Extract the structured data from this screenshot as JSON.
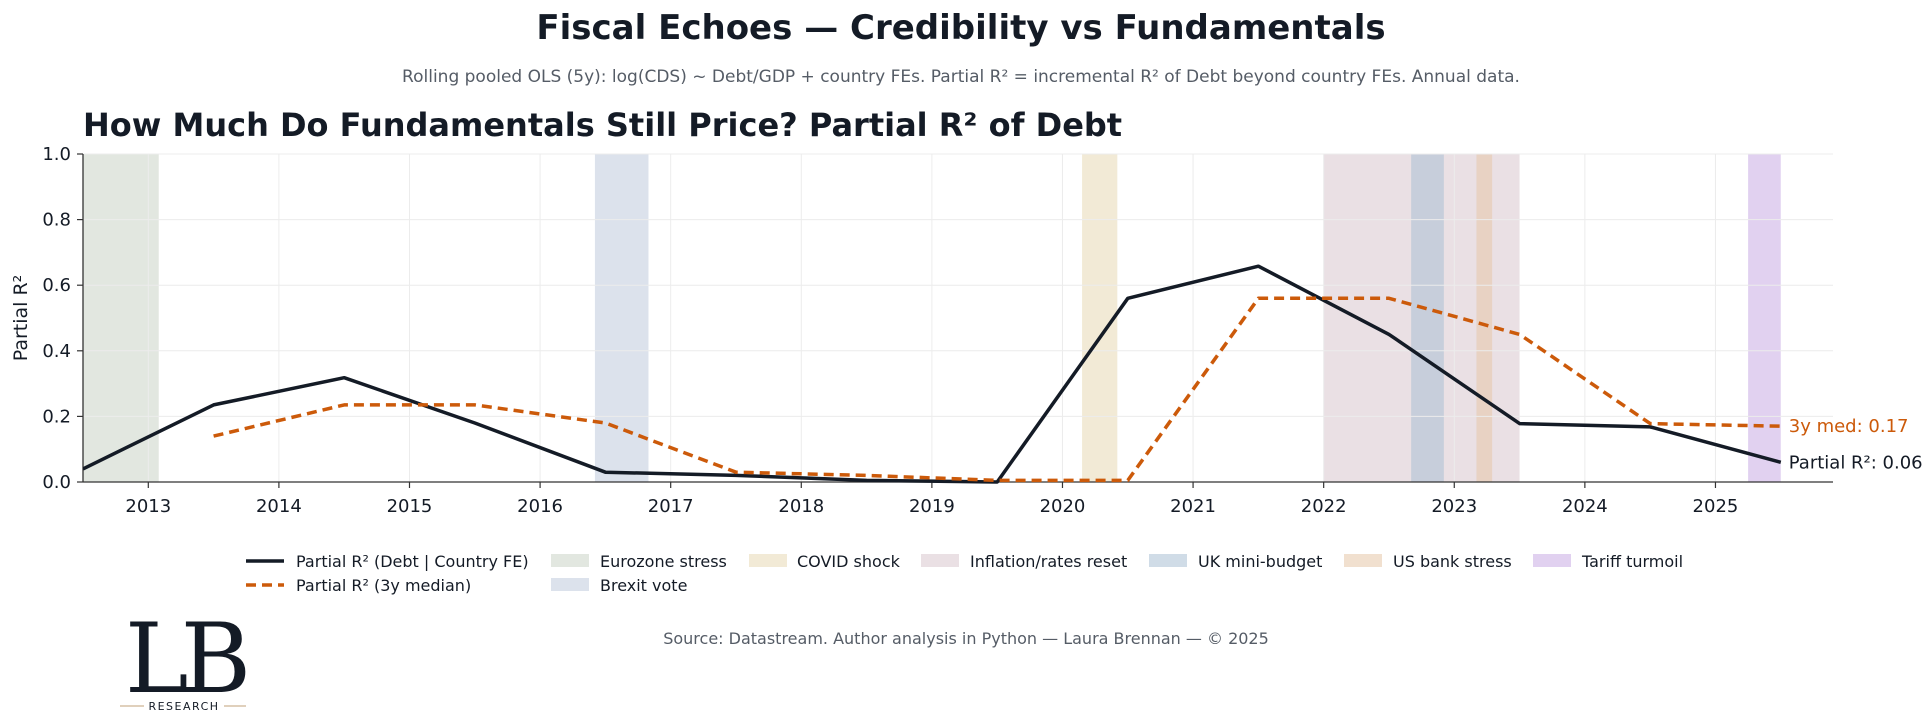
{
  "figure": {
    "suptitle": "Fiscal Echoes — Credibility vs Fundamentals",
    "subtitle": "Rolling pooled OLS (5y):  log(CDS) ~ Debt/GDP + country FEs.  Partial R² = incremental R² of Debt beyond country FEs.  Annual data.",
    "source": "Source: Datastream. Author analysis in Python — Laura Brennan — © 2025",
    "logo": {
      "letters": "LB",
      "tagline": "RESEARCH"
    }
  },
  "colors": {
    "main_line": "#141b26",
    "median_line": "#cc5a0a",
    "text_dark": "#141b26",
    "text_muted": "#555c66",
    "grid": "#ececec",
    "axis": "#333333"
  },
  "chart_data": {
    "type": "line",
    "title": "How Much Do Fundamentals Still Price?  Partial R² of Debt",
    "xlabel": "",
    "ylabel": "Partial R²",
    "xlim": [
      2012.5,
      2025.9
    ],
    "ylim": [
      0.0,
      1.0
    ],
    "grid": true,
    "x_ticks": [
      2013,
      2014,
      2015,
      2016,
      2017,
      2018,
      2019,
      2020,
      2021,
      2022,
      2023,
      2024,
      2025
    ],
    "x_tick_labels": [
      "2013",
      "2014",
      "2015",
      "2016",
      "2017",
      "2018",
      "2019",
      "2020",
      "2021",
      "2022",
      "2023",
      "2024",
      "2025"
    ],
    "y_ticks": [
      0.0,
      0.2,
      0.4,
      0.6,
      0.8,
      1.0
    ],
    "y_tick_labels": [
      "0.0",
      "0.2",
      "0.4",
      "0.6",
      "0.8",
      "1.0"
    ],
    "series": [
      {
        "name": "Partial R² (Debt | Country FE)",
        "style": "solid",
        "color": "#141b26",
        "x": [
          2012.5,
          2013.5,
          2014.5,
          2015.5,
          2016.5,
          2017.5,
          2018.5,
          2019.5,
          2020.5,
          2021.5,
          2022.5,
          2023.5,
          2024.5,
          2025.5
        ],
        "values": [
          0.04,
          0.235,
          0.318,
          0.18,
          0.03,
          0.02,
          0.005,
          0.0,
          0.56,
          0.658,
          0.45,
          0.178,
          0.168,
          0.06
        ]
      },
      {
        "name": "Partial R² (3y median)",
        "style": "dashed",
        "color": "#cc5a0a",
        "x": [
          2013.5,
          2014.5,
          2015.5,
          2016.5,
          2017.5,
          2018.5,
          2019.5,
          2020.5,
          2021.5,
          2022.5,
          2023.5,
          2024.5,
          2025.5
        ],
        "values": [
          0.14,
          0.235,
          0.235,
          0.18,
          0.03,
          0.02,
          0.005,
          0.005,
          0.56,
          0.56,
          0.45,
          0.178,
          0.17
        ]
      }
    ],
    "shaded_periods": [
      {
        "name": "Eurozone stress",
        "start": 2012.5,
        "end": 2013.08,
        "color": "#c6cfc1",
        "opacity": 0.5
      },
      {
        "name": "Brexit vote",
        "start": 2016.42,
        "end": 2016.83,
        "color": "#b9c6d9",
        "opacity": 0.5
      },
      {
        "name": "COVID shock",
        "start": 2020.15,
        "end": 2020.42,
        "color": "#e6d6ad",
        "opacity": 0.5
      },
      {
        "name": "Inflation/rates reset",
        "start": 2022.0,
        "end": 2023.5,
        "color": "#d5c1ca",
        "opacity": 0.5
      },
      {
        "name": "UK mini-budget",
        "start": 2022.67,
        "end": 2022.92,
        "color": "#a9bfd4",
        "opacity": 0.55
      },
      {
        "name": "US bank stress",
        "start": 2023.17,
        "end": 2023.29,
        "color": "#e6c7a7",
        "opacity": 0.55
      },
      {
        "name": "Tariff turmoil",
        "start": 2025.25,
        "end": 2025.5,
        "color": "#c9abe3",
        "opacity": 0.55
      }
    ],
    "annotations": [
      {
        "text": "3y med: 0.17",
        "series": "Partial R² (3y median)",
        "x": 2025.5,
        "y": 0.17,
        "color": "#cc5a0a"
      },
      {
        "text": "Partial R²: 0.06",
        "series": "Partial R² (Debt | Country FE)",
        "x": 2025.5,
        "y": 0.06,
        "color": "#141b26"
      }
    ],
    "legend_position": "bottom-center"
  }
}
